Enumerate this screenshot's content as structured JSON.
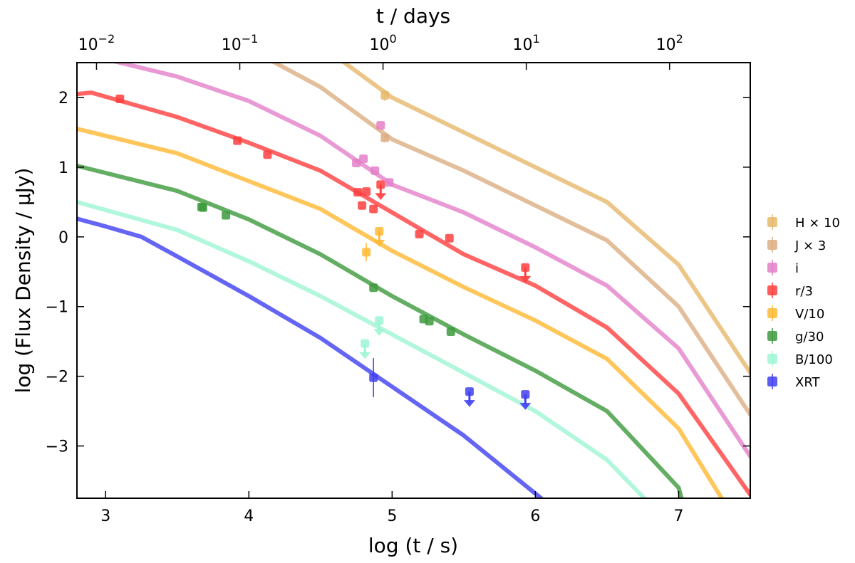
{
  "chart_data": {
    "type": "scatter",
    "xlabel": "log (t / s)",
    "ylabel": "log (Flux Density / µJy)",
    "top_xlabel": "t / days",
    "xlim": [
      2.8,
      7.5
    ],
    "ylim": [
      -3.75,
      2.5
    ],
    "x_ticks": [
      3,
      4,
      5,
      6,
      7
    ],
    "y_ticks": [
      -3,
      -2,
      -1,
      0,
      1,
      2
    ],
    "top_ticks": [
      {
        "log_days": -2,
        "base": "10",
        "exp": "−2"
      },
      {
        "log_days": -1,
        "base": "10",
        "exp": "−1"
      },
      {
        "log_days": 0,
        "base": "10",
        "exp": "0"
      },
      {
        "log_days": 1,
        "base": "10",
        "exp": "1"
      },
      {
        "log_days": 2,
        "base": "10",
        "exp": "2"
      }
    ],
    "legend_position": "right-outside",
    "series": [
      {
        "name": "H × 10",
        "color": "#e6b86a",
        "model": [
          [
            4.5,
            2.75
          ],
          [
            5.0,
            2.0
          ],
          [
            5.5,
            1.5
          ],
          [
            6.0,
            1.0
          ],
          [
            6.5,
            0.5
          ],
          [
            7.0,
            -0.4
          ],
          [
            7.5,
            -1.95
          ]
        ],
        "points": [
          {
            "x": 4.95,
            "y": 2.03,
            "yerr": 0.08
          }
        ],
        "upper_limits": []
      },
      {
        "name": "J × 3",
        "color": "#dcae82",
        "model": [
          [
            4.0,
            2.7
          ],
          [
            4.5,
            2.15
          ],
          [
            5.0,
            1.4
          ],
          [
            5.5,
            0.95
          ],
          [
            6.0,
            0.45
          ],
          [
            6.5,
            -0.05
          ],
          [
            7.0,
            -1.0
          ],
          [
            7.5,
            -2.55
          ]
        ],
        "points": [
          {
            "x": 4.95,
            "y": 1.42,
            "yerr": 0.06
          }
        ],
        "upper_limits": []
      },
      {
        "name": "i",
        "color": "#e47fc8",
        "model": [
          [
            2.8,
            2.65
          ],
          [
            3.5,
            2.3
          ],
          [
            4.0,
            1.95
          ],
          [
            4.5,
            1.45
          ],
          [
            5.0,
            0.75
          ],
          [
            5.5,
            0.35
          ],
          [
            6.0,
            -0.15
          ],
          [
            6.5,
            -0.7
          ],
          [
            7.0,
            -1.6
          ],
          [
            7.5,
            -3.15
          ]
        ],
        "points": [
          {
            "x": 4.75,
            "y": 1.06
          },
          {
            "x": 4.8,
            "y": 1.12
          },
          {
            "x": 4.88,
            "y": 0.95
          },
          {
            "x": 4.92,
            "y": 1.6
          },
          {
            "x": 4.98,
            "y": 0.78
          }
        ],
        "upper_limits": []
      },
      {
        "name": "r/3",
        "color": "#ff3e3e",
        "model": [
          [
            2.8,
            2.05
          ],
          [
            2.9,
            2.07
          ],
          [
            3.5,
            1.72
          ],
          [
            4.0,
            1.35
          ],
          [
            4.5,
            0.95
          ],
          [
            5.0,
            0.35
          ],
          [
            5.5,
            -0.25
          ],
          [
            6.0,
            -0.7
          ],
          [
            6.5,
            -1.3
          ],
          [
            7.0,
            -2.25
          ],
          [
            7.5,
            -3.7
          ]
        ],
        "points": [
          {
            "x": 3.1,
            "y": 1.98
          },
          {
            "x": 3.92,
            "y": 1.38
          },
          {
            "x": 4.13,
            "y": 1.18
          },
          {
            "x": 4.76,
            "y": 0.64
          },
          {
            "x": 4.82,
            "y": 0.65
          },
          {
            "x": 4.79,
            "y": 0.45
          },
          {
            "x": 4.87,
            "y": 0.4
          },
          {
            "x": 5.19,
            "y": 0.04
          },
          {
            "x": 5.4,
            "y": -0.02
          }
        ],
        "upper_limits": [
          {
            "x": 4.92,
            "y": 0.75
          },
          {
            "x": 5.93,
            "y": -0.44
          }
        ]
      },
      {
        "name": "V/10",
        "color": "#ffb833",
        "model": [
          [
            2.8,
            1.55
          ],
          [
            3.5,
            1.2
          ],
          [
            4.0,
            0.8
          ],
          [
            4.5,
            0.4
          ],
          [
            5.0,
            -0.2
          ],
          [
            5.5,
            -0.72
          ],
          [
            6.0,
            -1.2
          ],
          [
            6.5,
            -1.75
          ],
          [
            7.0,
            -2.75
          ],
          [
            7.3,
            -3.75
          ]
        ],
        "points": [
          {
            "x": 4.82,
            "y": -0.22,
            "yerr": 0.13
          }
        ],
        "upper_limits": [
          {
            "x": 4.91,
            "y": 0.08
          }
        ]
      },
      {
        "name": "g/30",
        "color": "#3d9a3d",
        "model": [
          [
            2.8,
            1.02
          ],
          [
            3.5,
            0.66
          ],
          [
            4.0,
            0.25
          ],
          [
            4.5,
            -0.25
          ],
          [
            5.0,
            -0.85
          ],
          [
            5.5,
            -1.4
          ],
          [
            6.0,
            -1.92
          ],
          [
            6.5,
            -2.5
          ],
          [
            7.0,
            -3.6
          ],
          [
            7.02,
            -3.75
          ]
        ],
        "points": [
          {
            "x": 3.67,
            "y": 0.43
          },
          {
            "x": 3.68,
            "y": 0.42
          },
          {
            "x": 3.84,
            "y": 0.31
          },
          {
            "x": 4.87,
            "y": -0.73
          },
          {
            "x": 5.22,
            "y": -1.18
          },
          {
            "x": 5.26,
            "y": -1.21
          },
          {
            "x": 5.41,
            "y": -1.36
          }
        ],
        "upper_limits": []
      },
      {
        "name": "B/100",
        "color": "#9df5d3",
        "model": [
          [
            2.8,
            0.5
          ],
          [
            3.5,
            0.1
          ],
          [
            4.0,
            -0.35
          ],
          [
            4.5,
            -0.85
          ],
          [
            5.0,
            -1.4
          ],
          [
            5.5,
            -1.95
          ],
          [
            6.0,
            -2.5
          ],
          [
            6.5,
            -3.2
          ],
          [
            6.76,
            -3.75
          ]
        ],
        "points": [],
        "upper_limits": [
          {
            "x": 4.81,
            "y": -1.53
          },
          {
            "x": 4.91,
            "y": -1.2
          }
        ]
      },
      {
        "name": "XRT",
        "color": "#3f3ff0",
        "model": [
          [
            2.8,
            0.26
          ],
          [
            3.0,
            0.15
          ],
          [
            3.25,
            0.0
          ],
          [
            3.5,
            -0.28
          ],
          [
            4.0,
            -0.85
          ],
          [
            4.5,
            -1.45
          ],
          [
            5.0,
            -2.15
          ],
          [
            5.5,
            -2.85
          ],
          [
            6.04,
            -3.75
          ]
        ],
        "points": [
          {
            "x": 4.87,
            "y": -2.02,
            "yerr": 0.28
          }
        ],
        "upper_limits": [
          {
            "x": 5.54,
            "y": -2.22
          },
          {
            "x": 5.93,
            "y": -2.26
          }
        ]
      }
    ]
  }
}
